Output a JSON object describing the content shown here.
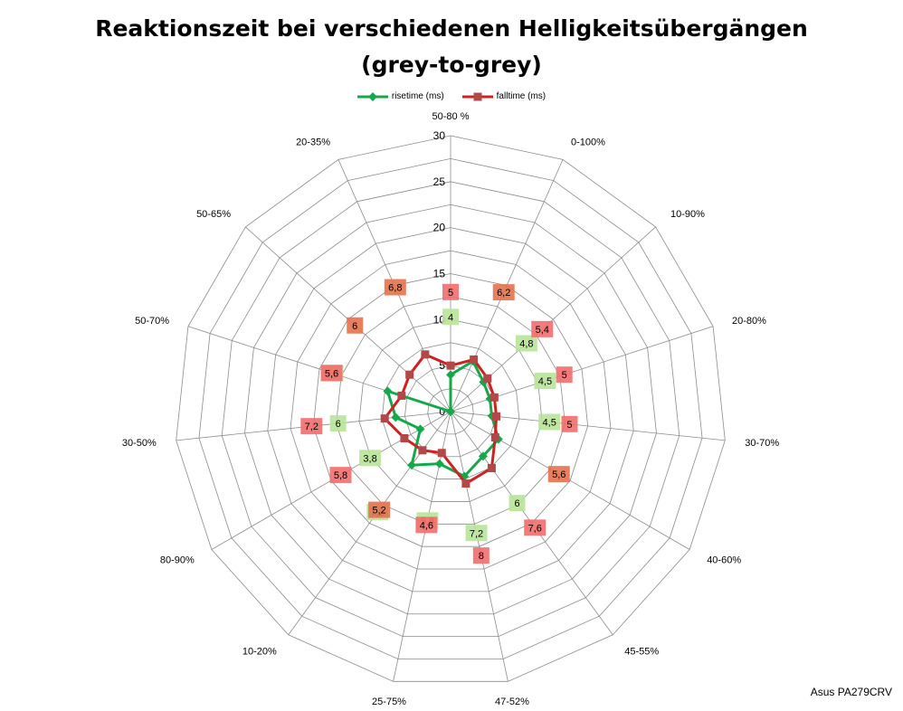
{
  "title": {
    "line1": "Reaktionszeit bei verschiedenen Helligkeitsübergängen",
    "line2": "(grey-to-grey)"
  },
  "brand": "Asus PA279CRV",
  "chart_data": {
    "type": "radar",
    "categories": [
      "50-80 %",
      "0-100%",
      "10-90%",
      "20-80%",
      "30-70%",
      "40-60%",
      "45-55%",
      "47-52%",
      "25-75%",
      "10-20%",
      "80-90%",
      "30-50%",
      "50-70%",
      "50-65%",
      "20-35%"
    ],
    "radial_ticks": [
      "0",
      "5",
      "10",
      "15",
      "20",
      "25",
      "30"
    ],
    "rmax": 30,
    "grid": true,
    "legend_position": "top",
    "series": [
      {
        "name": "risetime (ms)",
        "color": "#14a84a",
        "values": [
          4,
          6,
          4.8,
          4.5,
          4.5,
          6,
          6,
          7.2,
          5.8,
          7.2,
          3.8,
          6,
          7.2,
          0,
          0
        ],
        "labels": [
          "4",
          "",
          "4,8",
          "4,5",
          "4,5",
          "",
          "6",
          "7,2",
          "5,8",
          "7,2",
          "3,8",
          "6",
          "7,2",
          "",
          ""
        ]
      },
      {
        "name": "falltime (ms)",
        "color": "#cc2222",
        "values": [
          5,
          6.2,
          5.4,
          5,
          5,
          5.6,
          7.6,
          8,
          4.6,
          5.2,
          5.8,
          7.2,
          5.6,
          6,
          6.8
        ],
        "labels": [
          "5",
          "6,2",
          "5,4",
          "5",
          "5",
          "5,6",
          "7,6",
          "8",
          "4,6",
          "5,2",
          "5,8",
          "7,2",
          "5,6",
          "6",
          "6,8"
        ]
      }
    ]
  }
}
